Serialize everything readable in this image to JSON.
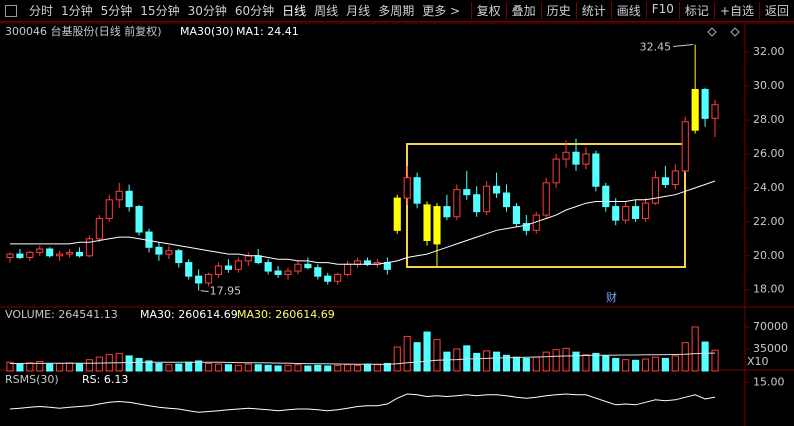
{
  "toolbar": {
    "left": [
      "分时",
      "1分钟",
      "5分钟",
      "15分钟",
      "30分钟",
      "60分钟",
      "日线",
      "周线",
      "月线",
      "多周期",
      "更多 >"
    ],
    "active": "日线",
    "right": [
      "复权",
      "叠加",
      "历史",
      "统计",
      "画线",
      "F10",
      "标记",
      "+自选",
      "返回"
    ]
  },
  "chart_data": [
    {
      "type": "candlestick",
      "title": "300046 台基股份(日线 前复权)",
      "ma_label": "MA1: 24.41",
      "event_marker": "财",
      "up_color": "#ff3c3c",
      "down_color": "#54ffff",
      "highlight_color": "#ffff00",
      "highlight": [
        39,
        42,
        43,
        69
      ],
      "open": [
        19.9,
        20.1,
        19.9,
        20.2,
        20.4,
        20.0,
        20.1,
        20.2,
        20.0,
        21.0,
        22.2,
        23.3,
        23.8,
        22.9,
        21.4,
        20.5,
        20.1,
        20.3,
        19.6,
        18.8,
        18.4,
        18.9,
        19.4,
        19.2,
        19.7,
        20.0,
        19.6,
        19.1,
        18.9,
        19.1,
        19.5,
        19.3,
        18.8,
        18.5,
        18.9,
        19.5,
        19.7,
        19.5,
        19.6,
        21.5,
        23.4,
        24.6,
        23.0,
        20.7,
        22.9,
        22.3,
        23.9,
        23.6,
        22.6,
        24.1,
        23.7,
        22.9,
        21.9,
        21.5,
        22.4,
        24.3,
        25.7,
        26.1,
        25.4,
        26.0,
        24.1,
        22.9,
        22.1,
        22.9,
        22.2,
        23.1,
        24.6,
        24.2,
        25.0,
        27.4,
        29.8,
        28.1
      ],
      "high": [
        20.2,
        20.4,
        20.3,
        20.6,
        20.5,
        20.3,
        20.4,
        20.5,
        21.2,
        22.4,
        23.6,
        24.3,
        24.2,
        23.0,
        21.6,
        20.8,
        20.6,
        20.4,
        19.8,
        19.2,
        19.0,
        19.6,
        19.8,
        19.9,
        20.2,
        20.4,
        19.8,
        19.4,
        19.3,
        19.7,
        19.9,
        19.5,
        19.0,
        19.0,
        19.7,
        19.9,
        19.9,
        19.8,
        19.9,
        23.6,
        25.3,
        24.9,
        23.2,
        23.1,
        23.6,
        24.2,
        25.0,
        24.1,
        24.4,
        24.9,
        24.2,
        23.1,
        22.4,
        22.6,
        24.6,
        26.0,
        26.8,
        26.9,
        26.4,
        26.2,
        24.3,
        23.4,
        23.2,
        23.3,
        23.4,
        25.0,
        25.3,
        25.4,
        28.2,
        32.45,
        29.9,
        29.2
      ],
      "low": [
        19.6,
        19.8,
        19.7,
        20.0,
        19.9,
        19.7,
        19.9,
        19.9,
        19.9,
        20.8,
        22.0,
        22.8,
        22.6,
        21.2,
        20.2,
        19.7,
        19.8,
        19.3,
        18.6,
        17.95,
        18.2,
        18.7,
        19.0,
        19.0,
        19.4,
        19.5,
        18.9,
        18.7,
        18.6,
        18.9,
        19.2,
        18.6,
        18.3,
        18.3,
        18.8,
        19.3,
        19.4,
        19.3,
        18.9,
        21.3,
        23.0,
        22.8,
        20.6,
        19.4,
        22.1,
        22.1,
        23.3,
        22.3,
        22.4,
        23.4,
        22.6,
        21.7,
        21.2,
        21.3,
        22.2,
        24.0,
        25.2,
        25.0,
        25.1,
        23.8,
        22.6,
        21.8,
        21.9,
        22.0,
        22.0,
        23.0,
        24.0,
        23.9,
        24.9,
        27.2,
        27.6,
        27.0
      ],
      "close": [
        20.1,
        19.9,
        20.2,
        20.4,
        20.0,
        20.1,
        20.2,
        20.0,
        21.0,
        22.2,
        23.3,
        23.8,
        22.9,
        21.4,
        20.5,
        20.1,
        20.3,
        19.6,
        18.8,
        18.4,
        18.9,
        19.4,
        19.2,
        19.7,
        20.0,
        19.6,
        19.1,
        18.9,
        19.1,
        19.5,
        19.3,
        18.8,
        18.5,
        18.9,
        19.5,
        19.7,
        19.5,
        19.6,
        19.2,
        23.4,
        24.6,
        23.1,
        20.9,
        22.9,
        22.3,
        23.9,
        23.6,
        22.6,
        24.1,
        23.7,
        22.9,
        21.9,
        21.5,
        22.4,
        24.3,
        25.7,
        26.1,
        25.4,
        26.0,
        24.1,
        22.9,
        22.1,
        22.9,
        22.2,
        23.1,
        24.6,
        24.2,
        25.0,
        27.9,
        29.8,
        28.1,
        28.9
      ],
      "series": [
        {
          "name": "MA30(30)",
          "color": "#ffffff",
          "values": [
            20.7,
            20.7,
            20.7,
            20.7,
            20.7,
            20.7,
            20.7,
            20.8,
            20.8,
            20.9,
            21.0,
            21.1,
            21.1,
            21.0,
            20.9,
            20.8,
            20.7,
            20.6,
            20.5,
            20.4,
            20.3,
            20.2,
            20.1,
            20.1,
            20.0,
            20.0,
            19.9,
            19.8,
            19.8,
            19.7,
            19.7,
            19.6,
            19.6,
            19.5,
            19.5,
            19.5,
            19.5,
            19.5,
            19.6,
            19.7,
            19.9,
            20.0,
            20.1,
            20.3,
            20.5,
            20.7,
            20.9,
            21.1,
            21.3,
            21.5,
            21.6,
            21.7,
            21.8,
            22.0,
            22.2,
            22.4,
            22.7,
            22.9,
            23.1,
            23.2,
            23.2,
            23.2,
            23.2,
            23.3,
            23.3,
            23.4,
            23.5,
            23.6,
            23.8,
            24.0,
            24.2,
            24.41
          ]
        }
      ],
      "annotations": [
        {
          "text": "32.45",
          "index": 69,
          "value": 32.45
        },
        {
          "text": "17.95",
          "index": 19,
          "value": 17.95
        }
      ],
      "ylim": [
        17.1,
        33.6
      ],
      "yticks": [
        {
          "value": 18,
          "label": "18.00"
        },
        {
          "value": 20,
          "label": "20.00"
        },
        {
          "value": 22,
          "label": "22.00"
        },
        {
          "value": 24,
          "label": "24.00"
        },
        {
          "value": 26,
          "label": "26.00"
        },
        {
          "value": 28,
          "label": "28.00"
        },
        {
          "value": 30,
          "label": "30.00"
        },
        {
          "value": 32,
          "label": "32.00"
        }
      ],
      "grid": false
    },
    {
      "type": "bar",
      "title": "VOLUME: 264541.13",
      "legend": [
        "MA30: 260614.69",
        "MA30: 260614.69"
      ],
      "unit_label": "X10",
      "values": [
        14000,
        12000,
        13000,
        15000,
        11000,
        12000,
        13000,
        11000,
        18000,
        22000,
        26000,
        28000,
        24000,
        20000,
        16000,
        12000,
        10000,
        11000,
        14000,
        16000,
        12000,
        11000,
        10000,
        9000,
        11000,
        10000,
        9000,
        8000,
        9000,
        10000,
        8000,
        9000,
        8000,
        9000,
        10000,
        9000,
        11000,
        10000,
        12000,
        38000,
        55000,
        45000,
        62000,
        50000,
        30000,
        35000,
        40000,
        28000,
        32000,
        30000,
        25000,
        22000,
        20000,
        22000,
        30000,
        34000,
        36000,
        30000,
        26000,
        28000,
        24000,
        20000,
        18000,
        17000,
        19000,
        22000,
        20000,
        24000,
        45000,
        70000,
        46000,
        33000
      ],
      "ma": {
        "color": "#dddddd",
        "values": [
          12000,
          12000,
          12100,
          12100,
          12200,
          12200,
          12300,
          12300,
          12400,
          12600,
          12900,
          13200,
          13500,
          13700,
          13800,
          13900,
          13900,
          13900,
          14000,
          14000,
          13900,
          13800,
          13600,
          13400,
          13200,
          13000,
          12800,
          12500,
          12300,
          12000,
          11800,
          11600,
          11400,
          11200,
          11000,
          10800,
          10700,
          10600,
          10500,
          11500,
          13000,
          14200,
          15800,
          17000,
          17600,
          18200,
          19000,
          19500,
          20100,
          20600,
          21000,
          21400,
          21800,
          22300,
          22800,
          23400,
          23900,
          24300,
          24600,
          24900,
          25100,
          25300,
          25400,
          25500,
          25700,
          25900,
          26100,
          26300,
          26700,
          27600,
          28200,
          28500
        ]
      },
      "ylim": [
        0,
        93800
      ],
      "yticks": [
        35000,
        70000
      ]
    },
    {
      "type": "line",
      "title": "RSMS(30)",
      "value_label": "RS: 6.13",
      "color": "#ffffff",
      "values": [
        -1.0,
        -0.5,
        0.0,
        0.5,
        0.0,
        -0.5,
        0.0,
        0.5,
        1.0,
        2.0,
        3.0,
        3.5,
        3.0,
        2.0,
        1.0,
        0.0,
        -0.5,
        -1.0,
        -2.0,
        -3.0,
        -2.5,
        -2.0,
        -1.5,
        -1.0,
        -0.5,
        -1.0,
        -1.5,
        -2.0,
        -1.5,
        -1.0,
        -1.0,
        -1.5,
        -2.0,
        -1.5,
        -0.5,
        0.5,
        1.0,
        1.0,
        2.0,
        5.5,
        8.0,
        7.5,
        6.5,
        7.0,
        6.5,
        7.0,
        7.5,
        7.0,
        7.5,
        7.5,
        7.0,
        6.0,
        5.5,
        6.0,
        7.0,
        7.5,
        8.0,
        7.5,
        7.5,
        5.5,
        3.5,
        1.5,
        2.0,
        1.5,
        3.0,
        4.5,
        4.0,
        4.5,
        6.0,
        7.5,
        5.0,
        6.13
      ],
      "ylim": [
        -10,
        20
      ],
      "yticks": [
        {
          "value": 15,
          "label": "15.00"
        }
      ]
    }
  ]
}
